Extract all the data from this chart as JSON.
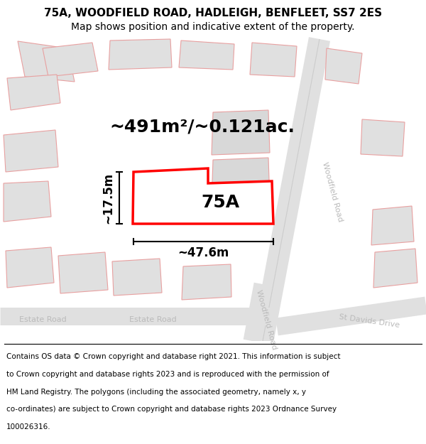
{
  "title_line1": "75A, WOODFIELD ROAD, HADLEIGH, BENFLEET, SS7 2ES",
  "title_line2": "Map shows position and indicative extent of the property.",
  "area_label": "~491m²/~0.121ac.",
  "width_label": "~47.6m",
  "height_label": "~17.5m",
  "plot_label": "75A",
  "title_fontsize": 11,
  "subtitle_fontsize": 10,
  "footer_fontsize": 7.5,
  "area_fontsize": 18,
  "dim_fontsize": 12,
  "plot_label_fontsize": 18,
  "footer_lines": [
    "Contains OS data © Crown copyright and database right 2021. This information is subject",
    "to Crown copyright and database rights 2023 and is reproduced with the permission of",
    "HM Land Registry. The polygons (including the associated geometry, namely x, y",
    "co-ordinates) are subject to Crown copyright and database rights 2023 Ordnance Survey",
    "100026316."
  ]
}
